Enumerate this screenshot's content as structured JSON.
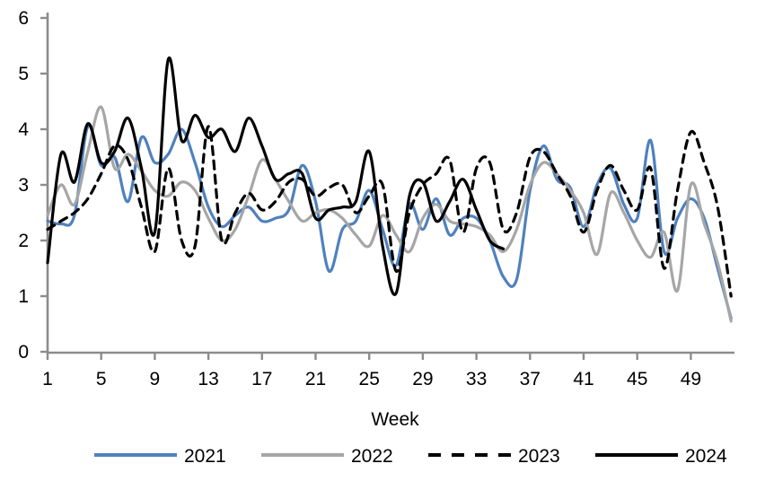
{
  "chart_data": {
    "type": "line",
    "title": "",
    "xlabel": "Week",
    "ylabel": "",
    "xlim": [
      1,
      52
    ],
    "ylim": [
      0,
      6
    ],
    "x_ticks": [
      1,
      5,
      9,
      13,
      17,
      21,
      25,
      29,
      33,
      37,
      41,
      45,
      49
    ],
    "y_ticks": [
      0,
      1,
      2,
      3,
      4,
      5,
      6
    ],
    "grid": "off",
    "legend_position": "bottom",
    "axis_color": "#8C8C8C",
    "x": [
      1,
      2,
      3,
      4,
      5,
      6,
      7,
      8,
      9,
      10,
      11,
      12,
      13,
      14,
      15,
      16,
      17,
      18,
      19,
      20,
      21,
      22,
      23,
      24,
      25,
      26,
      27,
      28,
      29,
      30,
      31,
      32,
      33,
      34,
      35,
      36,
      37,
      38,
      39,
      40,
      41,
      42,
      43,
      44,
      45,
      46,
      47,
      48,
      49,
      50,
      51,
      52
    ],
    "series": [
      {
        "name": "2021",
        "color": "#4F81BD",
        "style": "solid",
        "values": [
          2.35,
          2.3,
          2.45,
          4.05,
          3.35,
          3.5,
          2.7,
          3.85,
          3.4,
          3.55,
          4.0,
          3.4,
          2.6,
          2.25,
          2.45,
          2.6,
          2.35,
          2.4,
          2.55,
          3.35,
          2.7,
          1.45,
          2.2,
          2.35,
          2.9,
          2.2,
          1.55,
          2.65,
          2.2,
          2.75,
          2.1,
          2.4,
          2.4,
          2.0,
          1.35,
          1.3,
          2.9,
          3.7,
          3.1,
          2.95,
          2.25,
          3.0,
          3.3,
          2.65,
          2.4,
          3.8,
          1.8,
          2.4,
          2.75,
          2.4,
          1.5,
          0.6
        ]
      },
      {
        "name": "2022",
        "color": "#A6A6A6",
        "style": "solid",
        "values": [
          2.45,
          3.0,
          2.65,
          3.6,
          4.4,
          3.3,
          3.55,
          3.25,
          2.9,
          2.8,
          3.05,
          2.9,
          2.4,
          2.0,
          2.2,
          2.8,
          3.45,
          3.1,
          2.7,
          2.35,
          2.5,
          2.55,
          2.4,
          2.1,
          1.9,
          2.45,
          2.1,
          1.8,
          2.4,
          2.65,
          2.35,
          2.3,
          2.25,
          2.1,
          1.8,
          2.2,
          3.0,
          3.4,
          3.2,
          2.9,
          2.5,
          1.75,
          2.85,
          2.5,
          2.0,
          1.7,
          2.15,
          1.1,
          3.0,
          2.3,
          1.6,
          0.55
        ]
      },
      {
        "name": "2023",
        "color": "#000000",
        "style": "dashed",
        "values": [
          2.2,
          2.35,
          2.5,
          2.75,
          3.2,
          3.7,
          3.45,
          2.6,
          1.8,
          3.3,
          2.0,
          1.9,
          4.05,
          2.0,
          2.5,
          2.85,
          2.55,
          2.7,
          3.05,
          3.1,
          2.8,
          2.95,
          3.0,
          2.5,
          2.8,
          3.0,
          1.45,
          2.5,
          3.0,
          3.2,
          3.45,
          2.15,
          3.3,
          3.4,
          2.2,
          2.5,
          3.5,
          3.6,
          3.2,
          2.8,
          2.15,
          2.9,
          3.35,
          2.9,
          2.55,
          3.3,
          1.5,
          2.9,
          3.95,
          3.4,
          2.6,
          1.0
        ]
      },
      {
        "name": "2024",
        "color": "#000000",
        "style": "solid",
        "values": [
          1.6,
          3.55,
          3.05,
          4.1,
          3.4,
          3.6,
          4.2,
          3.3,
          2.15,
          5.25,
          3.8,
          4.25,
          3.85,
          4.0,
          3.6,
          4.2,
          3.7,
          3.1,
          3.2,
          3.2,
          2.4,
          2.55,
          2.6,
          2.7,
          3.6,
          1.9,
          1.05,
          2.8,
          3.05,
          2.35,
          2.7,
          3.1,
          2.55,
          2.0,
          1.85
        ]
      }
    ]
  }
}
